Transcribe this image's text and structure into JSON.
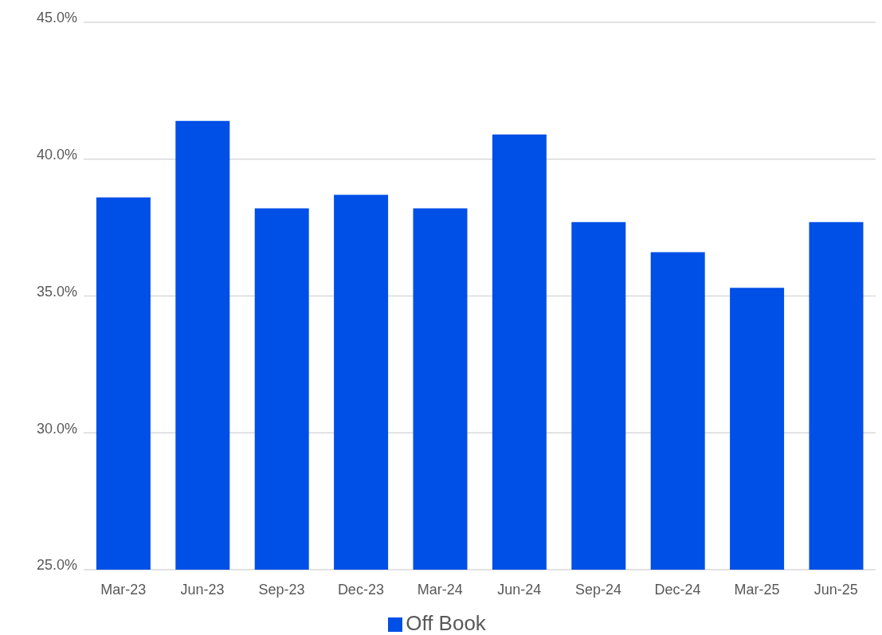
{
  "chart_data": {
    "type": "bar",
    "categories": [
      "Mar-23",
      "Jun-23",
      "Sep-23",
      "Dec-23",
      "Mar-24",
      "Jun-24",
      "Sep-24",
      "Dec-24",
      "Mar-25",
      "Jun-25"
    ],
    "series": [
      {
        "name": "Off Book",
        "color": "#004fe6",
        "values": [
          38.6,
          41.4,
          38.2,
          38.7,
          38.2,
          40.9,
          37.7,
          36.6,
          35.3,
          37.7
        ]
      }
    ],
    "ylim": [
      25,
      45
    ],
    "yticks": [
      {
        "value": 25,
        "label": "25.0%"
      },
      {
        "value": 30,
        "label": "30.0%"
      },
      {
        "value": 35,
        "label": "35.0%"
      },
      {
        "value": 40,
        "label": "40.0%"
      },
      {
        "value": 45,
        "label": "45.0%"
      }
    ],
    "grid": "y",
    "legend": "bottom"
  }
}
